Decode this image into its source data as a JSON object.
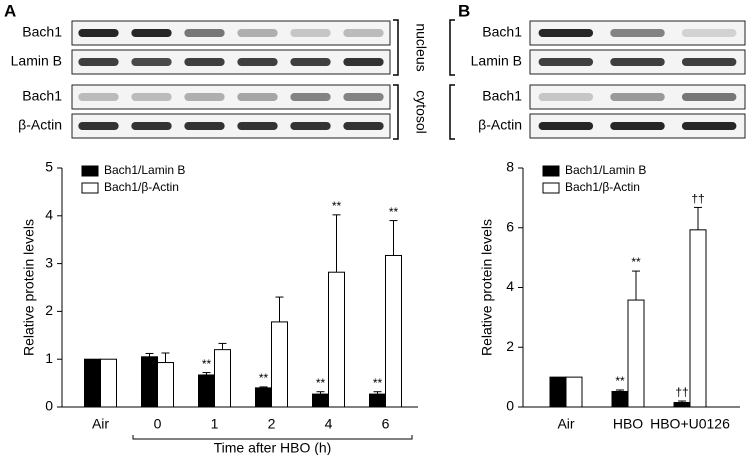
{
  "chart_data": [
    {
      "type": "bar",
      "panel": "A",
      "blot_labels": [
        "Bach1",
        "Lamin B",
        "Bach1",
        "β-Actin"
      ],
      "blot_groups": [
        "nucleus",
        "cytosol"
      ],
      "ylabel": "Relative protein levels",
      "xlabel": "Time after HBO (h)",
      "categories": [
        "Air",
        "0",
        "1",
        "2",
        "4",
        "6"
      ],
      "series": [
        {
          "name": "Bach1/Lamin B",
          "color": "#000000",
          "values": [
            1.0,
            1.05,
            0.67,
            0.4,
            0.27,
            0.27
          ],
          "errors": [
            0,
            0.07,
            0.05,
            0.02,
            0.05,
            0.05
          ],
          "significance": [
            null,
            null,
            "**",
            "**",
            "**",
            "**"
          ]
        },
        {
          "name": "Bach1/β-Actin",
          "color": "#ffffff",
          "values": [
            1.0,
            0.93,
            1.2,
            1.78,
            2.82,
            3.17
          ],
          "errors": [
            0,
            0.2,
            0.13,
            0.52,
            1.2,
            0.73
          ],
          "significance": [
            null,
            null,
            null,
            null,
            "**",
            "**"
          ]
        }
      ],
      "ylim": [
        0,
        5
      ],
      "yticks": [
        0,
        1,
        2,
        3,
        4,
        5
      ],
      "legend": "upper left"
    },
    {
      "type": "bar",
      "panel": "B",
      "blot_labels": [
        "Bach1",
        "Lamin B",
        "Bach1",
        "β-Actin"
      ],
      "ylabel": "Relative protein levels",
      "categories": [
        "Air",
        "HBO",
        "HBO+U0126"
      ],
      "series": [
        {
          "name": "Bach1/Lamin B",
          "color": "#000000",
          "values": [
            1.0,
            0.52,
            0.15
          ],
          "errors": [
            0,
            0.05,
            0.05
          ],
          "significance": [
            null,
            "**",
            "††"
          ]
        },
        {
          "name": "Bach1/β-Actin",
          "color": "#ffffff",
          "values": [
            1.0,
            3.58,
            5.93
          ],
          "errors": [
            0,
            0.97,
            0.75
          ],
          "significance": [
            null,
            "**",
            "††"
          ]
        }
      ],
      "ylim": [
        0,
        8
      ],
      "yticks": [
        0,
        2,
        4,
        6,
        8
      ],
      "legend": "upper left"
    }
  ]
}
